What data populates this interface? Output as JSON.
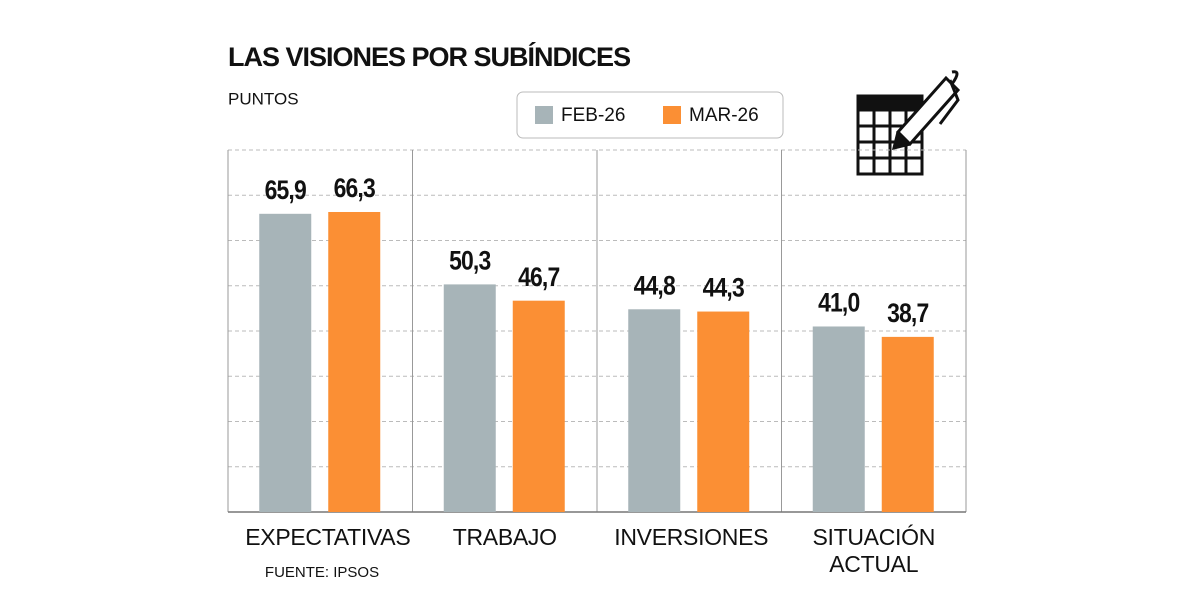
{
  "chart_data": {
    "type": "bar",
    "title": "LAS VISIONES POR SUBÍNDICES",
    "subtitle": "PUNTOS",
    "source": "FUENTE: IPSOS",
    "categories": [
      "EXPECTATIVAS",
      "TRABAJO",
      "INVERSIONES",
      "SITUACIÓN ACTUAL"
    ],
    "series": [
      {
        "name": "FEB-26",
        "color": "#a7b4b8",
        "values": [
          65.9,
          50.3,
          44.8,
          41.0
        ],
        "value_labels": [
          "65,9",
          "50,3",
          "44,8",
          "41,0"
        ]
      },
      {
        "name": "MAR-26",
        "color": "#fb8f34",
        "values": [
          66.3,
          46.7,
          44.3,
          38.7
        ],
        "value_labels": [
          "66,3",
          "46,7",
          "44,3",
          "38,7"
        ]
      }
    ],
    "ylim": [
      0,
      80
    ],
    "yticks": [
      0,
      10,
      20,
      30,
      40,
      50,
      60,
      70,
      80
    ],
    "grid": true
  }
}
